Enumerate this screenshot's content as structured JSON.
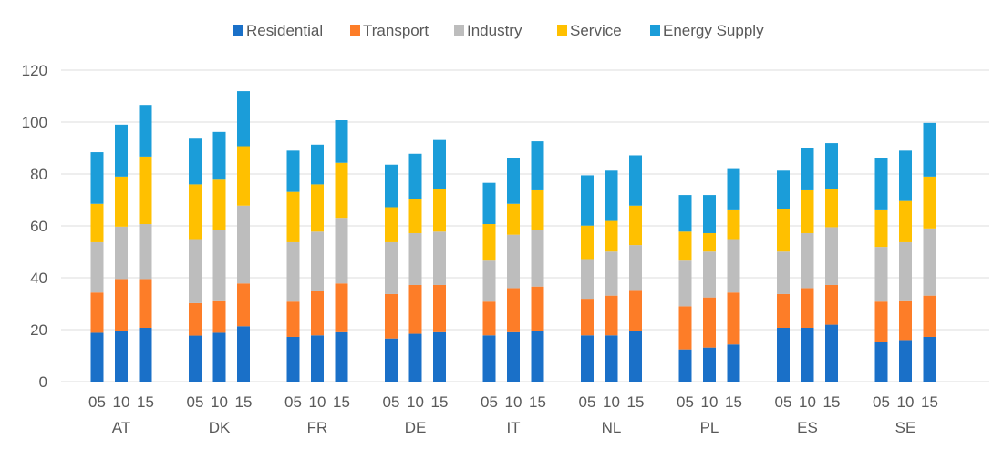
{
  "chart_data": {
    "type": "bar",
    "stacked": true,
    "title": "",
    "xlabel": "",
    "ylabel": "",
    "ylim": [
      0,
      120
    ],
    "yticks": [
      0,
      20,
      40,
      60,
      80,
      100,
      120
    ],
    "grid": true,
    "legend_position": "top-center",
    "groups": [
      "AT",
      "DK",
      "FR",
      "DE",
      "IT",
      "NL",
      "PL",
      "ES",
      "SE"
    ],
    "subcategories": [
      "05",
      "10",
      "15"
    ],
    "series": [
      {
        "name": "Residential",
        "color": "#1a70c8",
        "values": [
          [
            18.8,
            19.5,
            20.7
          ],
          [
            17.7,
            18.8,
            21.3
          ],
          [
            17.2,
            17.8,
            19.0
          ],
          [
            16.6,
            18.4,
            19.0
          ],
          [
            17.8,
            19.0,
            19.5
          ],
          [
            17.8,
            17.8,
            19.5
          ],
          [
            12.4,
            13.1,
            14.3
          ],
          [
            20.7,
            20.7,
            21.9
          ],
          [
            15.4,
            16.0,
            17.2
          ]
        ]
      },
      {
        "name": "Transport",
        "color": "#fd7d28",
        "values": [
          [
            15.5,
            20.0,
            18.8
          ],
          [
            12.5,
            12.5,
            16.5
          ],
          [
            13.6,
            17.1,
            18.8
          ],
          [
            17.1,
            18.8,
            18.2
          ],
          [
            13.0,
            17.0,
            17.1
          ],
          [
            14.1,
            15.3,
            15.8
          ],
          [
            16.6,
            19.3,
            20.0
          ],
          [
            13.0,
            15.3,
            15.3
          ],
          [
            15.4,
            15.3,
            15.9
          ]
        ]
      },
      {
        "name": "Industry",
        "color": "#bdbdbd",
        "values": [
          [
            19.4,
            20.2,
            21.2
          ],
          [
            24.7,
            27.1,
            30.0
          ],
          [
            22.9,
            22.9,
            25.3
          ],
          [
            20.0,
            20.0,
            20.6
          ],
          [
            15.8,
            20.6,
            21.8
          ],
          [
            15.3,
            17.0,
            17.3
          ],
          [
            17.6,
            17.7,
            20.6
          ],
          [
            16.4,
            21.2,
            22.3
          ],
          [
            21.1,
            22.4,
            25.9
          ]
        ]
      },
      {
        "name": "Service",
        "color": "#ffc000",
        "values": [
          [
            14.8,
            19.3,
            26.0
          ],
          [
            21.1,
            19.4,
            22.9
          ],
          [
            19.4,
            18.2,
            21.2
          ],
          [
            13.5,
            13.0,
            16.5
          ],
          [
            14.1,
            11.9,
            15.3
          ],
          [
            12.9,
            11.8,
            15.2
          ],
          [
            11.2,
            7.1,
            11.1
          ],
          [
            16.5,
            16.5,
            14.8
          ],
          [
            14.1,
            15.9,
            20.0
          ]
        ]
      },
      {
        "name": "Energy Supply",
        "color": "#1b9dd9",
        "values": [
          [
            19.9,
            20.0,
            19.9
          ],
          [
            17.6,
            18.4,
            21.2
          ],
          [
            15.9,
            15.3,
            16.4
          ],
          [
            16.4,
            17.6,
            18.8
          ],
          [
            15.9,
            17.5,
            18.9
          ],
          [
            19.4,
            19.4,
            19.4
          ],
          [
            14.1,
            14.7,
            15.9
          ],
          [
            14.7,
            16.4,
            17.6
          ],
          [
            20.0,
            19.4,
            20.7
          ]
        ]
      }
    ]
  }
}
